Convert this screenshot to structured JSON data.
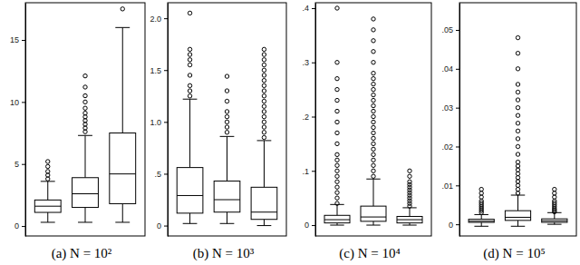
{
  "chart_data": [
    {
      "type": "box",
      "title": "(a) N = 10²",
      "ylim": [
        -0.8,
        18
      ],
      "yticks": [
        0,
        5,
        10,
        15
      ],
      "boxes": [
        {
          "whisker_low": 0.3,
          "q1": 1.1,
          "median": 1.6,
          "q3": 2.1,
          "whisker_high": 3.6,
          "outliers": [
            3.8,
            4.1,
            4.4,
            4.8,
            5.2
          ]
        },
        {
          "whisker_low": 0.3,
          "q1": 1.5,
          "median": 2.6,
          "q3": 3.9,
          "whisker_high": 7.3,
          "outliers": [
            7.6,
            7.9,
            8.2,
            8.5,
            8.8,
            9.1,
            9.5,
            10.0,
            10.5,
            11.2,
            12.1
          ]
        },
        {
          "whisker_low": 0.3,
          "q1": 1.8,
          "median": 4.2,
          "q3": 7.5,
          "whisker_high": 16,
          "outliers": [
            17.5
          ]
        }
      ]
    },
    {
      "type": "box",
      "title": "(b) N = 10³",
      "ylim": [
        -0.1,
        2.15
      ],
      "yticks": [
        0,
        {
          "value": 0.5,
          "label": ".5"
        },
        {
          "value": 1,
          "label": "1.0"
        },
        1.5,
        {
          "value": 2,
          "label": "2.0"
        }
      ],
      "boxes": [
        {
          "whisker_low": 0.02,
          "q1": 0.12,
          "median": 0.29,
          "q3": 0.56,
          "whisker_high": 1.22,
          "outliers": [
            1.25,
            1.3,
            1.35,
            1.45,
            1.55,
            1.6,
            1.65,
            1.7,
            2.05
          ]
        },
        {
          "whisker_low": 0.02,
          "q1": 0.13,
          "median": 0.25,
          "q3": 0.43,
          "whisker_high": 0.86,
          "outliers": [
            0.9,
            0.95,
            1.0,
            1.05,
            1.1,
            1.2,
            1.3,
            1.44
          ]
        },
        {
          "whisker_low": 0.0,
          "q1": 0.06,
          "median": 0.13,
          "q3": 0.37,
          "whisker_high": 0.82,
          "outliers": [
            0.85,
            0.9,
            0.95,
            1.0,
            1.05,
            1.1,
            1.15,
            1.2,
            1.25,
            1.3,
            1.35,
            1.4,
            1.45,
            1.5,
            1.55,
            1.6,
            1.65,
            1.7
          ]
        }
      ]
    },
    {
      "type": "box",
      "title": "(c) N = 10⁴",
      "ylim": [
        -0.02,
        0.41
      ],
      "yticks": [
        0,
        {
          "value": 0.1,
          "label": ".1"
        },
        {
          "value": 0.2,
          "label": ".2"
        },
        {
          "value": 0.3,
          "label": ".3"
        },
        {
          "value": 0.4,
          "label": ".4"
        }
      ],
      "boxes": [
        {
          "whisker_low": 0,
          "q1": 0.004,
          "median": 0.01,
          "q3": 0.018,
          "whisker_high": 0.038,
          "outliers": [
            0.04,
            0.05,
            0.06,
            0.07,
            0.08,
            0.09,
            0.1,
            0.11,
            0.12,
            0.13,
            0.15,
            0.17,
            0.19,
            0.21,
            0.23,
            0.25,
            0.27,
            0.3,
            0.4
          ]
        },
        {
          "whisker_low": 0,
          "q1": 0.007,
          "median": 0.015,
          "q3": 0.035,
          "whisker_high": 0.085,
          "outliers": [
            0.09,
            0.1,
            0.11,
            0.12,
            0.13,
            0.14,
            0.15,
            0.16,
            0.17,
            0.18,
            0.19,
            0.2,
            0.21,
            0.22,
            0.23,
            0.24,
            0.25,
            0.26,
            0.27,
            0.28,
            0.3,
            0.32,
            0.34,
            0.36,
            0.38
          ]
        },
        {
          "whisker_low": 0,
          "q1": 0.004,
          "median": 0.01,
          "q3": 0.016,
          "whisker_high": 0.032,
          "outliers": [
            0.035,
            0.04,
            0.045,
            0.05,
            0.055,
            0.06,
            0.065,
            0.07,
            0.075,
            0.08,
            0.09,
            0.1
          ]
        }
      ]
    },
    {
      "type": "box",
      "title": "(d) N = 10⁵",
      "ylim": [
        -0.003,
        0.057
      ],
      "yticks": [
        0,
        {
          "value": 0.01,
          "label": ".01"
        },
        {
          "value": 0.02,
          "label": ".02"
        },
        {
          "value": 0.03,
          "label": ".03"
        },
        {
          "value": 0.04,
          "label": ".04"
        },
        {
          "value": 0.05,
          "label": ".05"
        }
      ],
      "boxes": [
        {
          "whisker_low": -0.0005,
          "q1": 0.0005,
          "median": 0.0008,
          "q3": 0.0013,
          "whisker_high": 0.0025,
          "outliers": [
            0.003,
            0.0035,
            0.004,
            0.0045,
            0.005,
            0.0055,
            0.006,
            0.007,
            0.008,
            0.009
          ]
        },
        {
          "whisker_low": -0.0005,
          "q1": 0.001,
          "median": 0.0018,
          "q3": 0.0035,
          "whisker_high": 0.0075,
          "outliers": [
            0.008,
            0.009,
            0.01,
            0.011,
            0.012,
            0.013,
            0.014,
            0.015,
            0.016,
            0.018,
            0.02,
            0.022,
            0.024,
            0.026,
            0.028,
            0.03,
            0.032,
            0.034,
            0.036,
            0.04,
            0.044,
            0.048
          ]
        },
        {
          "whisker_low": 0,
          "q1": 0.0005,
          "median": 0.0009,
          "q3": 0.0014,
          "whisker_high": 0.003,
          "outliers": [
            0.0032,
            0.0036,
            0.004,
            0.0045,
            0.005,
            0.0055,
            0.006,
            0.007,
            0.008,
            0.009
          ]
        }
      ]
    }
  ]
}
